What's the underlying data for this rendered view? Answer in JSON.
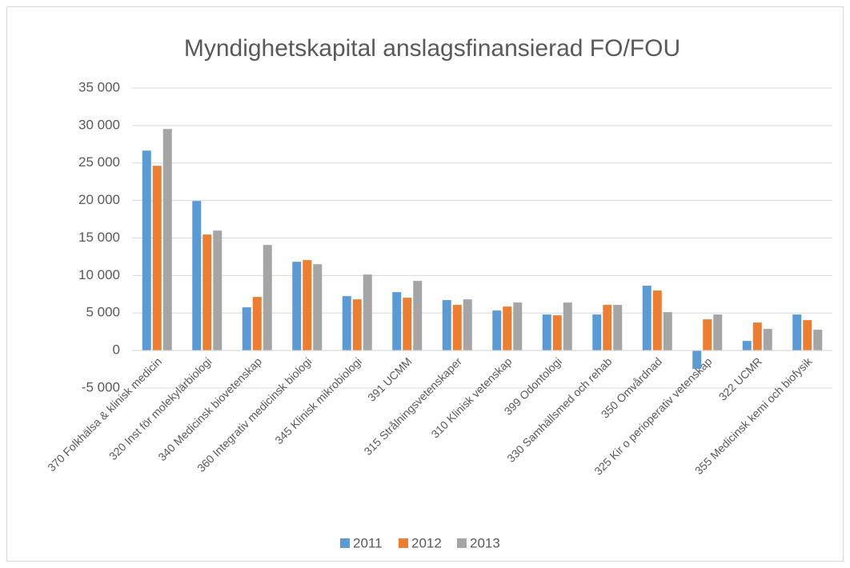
{
  "chart_data": {
    "type": "bar",
    "title": "Myndighetskapital anslagsfinansierad FO/FOU",
    "categories": [
      "370 Folkhälsa & klinisk medicin",
      "320 Inst för molekylärbiologi",
      "340 Medicinsk biovetenskap",
      "360 Integrativ medicinsk biologi",
      "345 Klinisk mikrobiologi",
      "391 UCMM",
      "315 Strålningsvetenskaper",
      "310 Klinisk vetenskap",
      "399 Odontologi",
      "330 Samhällsmed och rehab",
      "350 Omvårdnad",
      "325 Kir o perioperativ vetenskap",
      "322 UCMR",
      "355 Medicinsk kemi och biofysik"
    ],
    "series": [
      {
        "name": "2011",
        "color": "#5b9bd5",
        "values": [
          26650,
          19940,
          5760,
          11830,
          7250,
          7780,
          6720,
          5330,
          4800,
          4800,
          8640,
          -2450,
          1280,
          4800
        ]
      },
      {
        "name": "2012",
        "color": "#ed7d31",
        "values": [
          24630,
          15460,
          7140,
          12050,
          6820,
          7040,
          6080,
          5860,
          4690,
          6080,
          8000,
          4160,
          3730,
          4050
        ]
      },
      {
        "name": "2013",
        "color": "#a5a5a5",
        "values": [
          29530,
          15990,
          14070,
          11510,
          10130,
          9280,
          6820,
          6400,
          6400,
          6080,
          5120,
          4800,
          2880,
          2770
        ]
      }
    ],
    "ylim": [
      -5000,
      35000
    ],
    "yticks": [
      {
        "value": -5000,
        "label": "-5 000"
      },
      0,
      {
        "value": 5000,
        "label": "5 000"
      },
      {
        "value": 10000,
        "label": "10 000"
      },
      {
        "value": 15000,
        "label": "15 000"
      },
      {
        "value": 20000,
        "label": "20 000"
      },
      {
        "value": 25000,
        "label": "25 000"
      },
      {
        "value": 30000,
        "label": "30 000"
      },
      {
        "value": 35000,
        "label": "35 000"
      }
    ],
    "grid": true,
    "legend": "bottom"
  }
}
